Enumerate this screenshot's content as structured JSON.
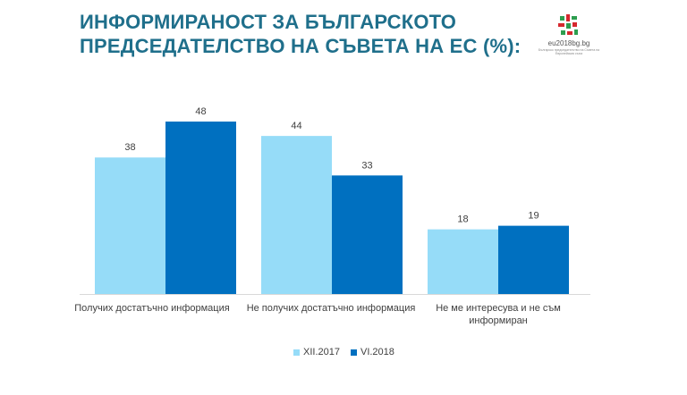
{
  "title_lines": [
    "ИНФОРМИРАНОСТ ЗА БЪЛГАРСКОТО",
    "ПРЕДСЕДАТЕЛСТВО НА СЪВЕТА НА ЕС (%):"
  ],
  "logo": {
    "text": "eu2018bg.bg",
    "subtext": "Българско председателство на Съвета на Европейския съюз",
    "icon": "bulgarian-presidency-logo-icon",
    "colors": [
      "#2e9e4f",
      "#d6282e",
      "#f2f2f2"
    ]
  },
  "chart_data": {
    "type": "bar",
    "categories": [
      [
        "Получих достатъчно информация"
      ],
      [
        "Не получих достатъчно информация"
      ],
      [
        "Не ме интересува и не съм",
        "информиран"
      ]
    ],
    "series": [
      {
        "name": "XII.2017",
        "values": [
          38,
          44,
          18
        ],
        "color": "#96dcf8"
      },
      {
        "name": "VI.2018",
        "values": [
          48,
          33,
          19
        ],
        "color": "#0070c0"
      }
    ],
    "title": "",
    "xlabel": "",
    "ylabel": "",
    "ylim": [
      0,
      50
    ],
    "grid": false,
    "legend": "bottom-center"
  }
}
